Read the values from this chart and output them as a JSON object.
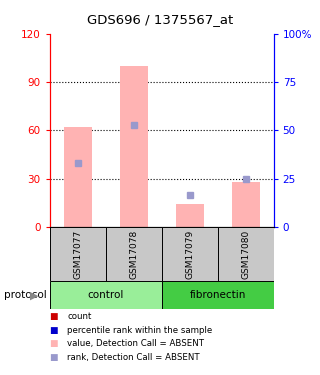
{
  "title": "GDS696 / 1375567_at",
  "samples": [
    "GSM17077",
    "GSM17078",
    "GSM17079",
    "GSM17080"
  ],
  "pink_bar_values": [
    62,
    100,
    14,
    28
  ],
  "blue_marker_values": [
    40,
    63,
    20,
    30
  ],
  "left_ylim": [
    0,
    120
  ],
  "right_ylim": [
    0,
    100
  ],
  "left_yticks": [
    0,
    30,
    60,
    90,
    120
  ],
  "right_yticks": [
    0,
    25,
    50,
    75,
    100
  ],
  "right_yticklabels": [
    "0",
    "25",
    "50",
    "75",
    "100%"
  ],
  "pink_color": "#FFB3B3",
  "blue_color": "#9999CC",
  "red_marker_color": "#CC0000",
  "dark_blue_color": "#0000CC",
  "control_color": "#99EE99",
  "fibronectin_color": "#44CC44",
  "label_bg_color": "#C8C8C8",
  "gridline_values": [
    30,
    60,
    90
  ],
  "bar_width": 0.5,
  "group_bounds": [
    [
      -0.5,
      1.5,
      "control",
      "#99EE99"
    ],
    [
      1.5,
      3.5,
      "fibronectin",
      "#44CC44"
    ]
  ],
  "legend_entries": [
    [
      "#CC0000",
      "count"
    ],
    [
      "#0000CC",
      "percentile rank within the sample"
    ],
    [
      "#FFB3B3",
      "value, Detection Call = ABSENT"
    ],
    [
      "#9999CC",
      "rank, Detection Call = ABSENT"
    ]
  ]
}
